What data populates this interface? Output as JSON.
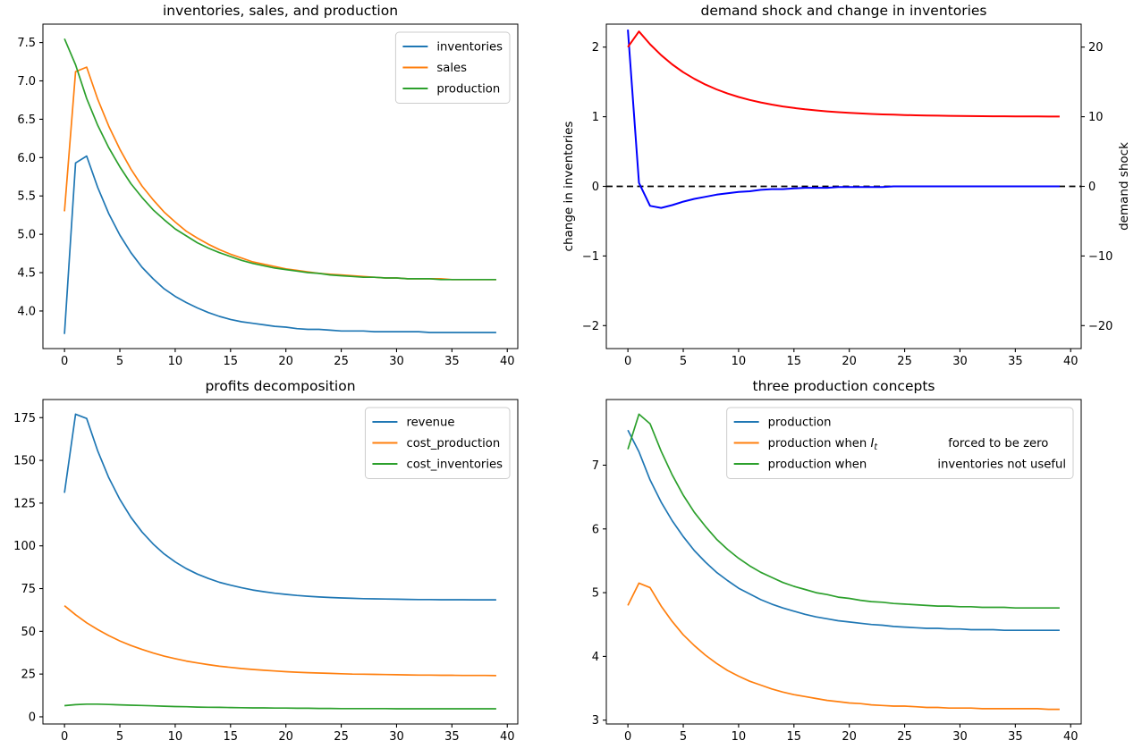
{
  "figure": {
    "background": "#ffffff",
    "text_color": "#000000",
    "spine_color": "#000000"
  },
  "chart_data": [
    {
      "id": "inventories-sales-production",
      "type": "line",
      "title": "inventories, sales, and production",
      "x": [
        0,
        1,
        2,
        3,
        4,
        5,
        6,
        7,
        8,
        9,
        10,
        11,
        12,
        13,
        14,
        15,
        16,
        17,
        18,
        19,
        20,
        21,
        22,
        23,
        24,
        25,
        26,
        27,
        28,
        29,
        30,
        31,
        32,
        33,
        34,
        35,
        36,
        37,
        38,
        39
      ],
      "xlim": [
        -1.95,
        40.95
      ],
      "ylim": [
        3.51,
        7.74
      ],
      "xticks": {
        "values": [
          0,
          5,
          10,
          15,
          20,
          25,
          30,
          35,
          40
        ],
        "labels": [
          "0",
          "5",
          "10",
          "15",
          "20",
          "25",
          "30",
          "35",
          "40"
        ]
      },
      "yticks": {
        "values": [
          4.0,
          4.5,
          5.0,
          5.5,
          6.0,
          6.5,
          7.0,
          7.5
        ],
        "labels": [
          "4.0",
          "4.5",
          "5.0",
          "5.5",
          "6.0",
          "6.5",
          "7.0",
          "7.5"
        ]
      },
      "legend": {
        "visible": true,
        "location": "upper right"
      },
      "series": [
        {
          "name": "inventories",
          "label": "inventories",
          "color": "#1f77b4",
          "width": 1.7,
          "values": [
            3.7,
            5.93,
            6.02,
            5.61,
            5.27,
            4.99,
            4.76,
            4.57,
            4.42,
            4.29,
            4.19,
            4.11,
            4.04,
            3.98,
            3.93,
            3.89,
            3.86,
            3.84,
            3.82,
            3.8,
            3.79,
            3.77,
            3.76,
            3.76,
            3.75,
            3.74,
            3.74,
            3.74,
            3.73,
            3.73,
            3.73,
            3.73,
            3.73,
            3.72,
            3.72,
            3.72,
            3.72,
            3.72,
            3.72,
            3.72
          ]
        },
        {
          "name": "sales",
          "label": "sales",
          "color": "#ff7f0e",
          "width": 1.7,
          "values": [
            5.3,
            7.12,
            7.18,
            6.76,
            6.41,
            6.11,
            5.85,
            5.63,
            5.45,
            5.29,
            5.16,
            5.04,
            4.95,
            4.87,
            4.8,
            4.74,
            4.69,
            4.64,
            4.61,
            4.58,
            4.55,
            4.53,
            4.51,
            4.49,
            4.48,
            4.47,
            4.46,
            4.45,
            4.44,
            4.43,
            4.43,
            4.42,
            4.42,
            4.42,
            4.42,
            4.41,
            4.41,
            4.41,
            4.41,
            4.41
          ]
        },
        {
          "name": "production",
          "label": "production",
          "color": "#2ca02c",
          "width": 1.7,
          "values": [
            7.55,
            7.21,
            6.77,
            6.42,
            6.13,
            5.88,
            5.66,
            5.48,
            5.32,
            5.19,
            5.07,
            4.98,
            4.89,
            4.82,
            4.76,
            4.71,
            4.66,
            4.62,
            4.59,
            4.56,
            4.54,
            4.52,
            4.5,
            4.49,
            4.47,
            4.46,
            4.45,
            4.44,
            4.44,
            4.43,
            4.43,
            4.42,
            4.42,
            4.42,
            4.41,
            4.41,
            4.41,
            4.41,
            4.41,
            4.41
          ]
        }
      ]
    },
    {
      "id": "demand-shock-change-in-inventories",
      "type": "line",
      "title": "demand shock and change in inventories",
      "x": [
        0,
        1,
        2,
        3,
        4,
        5,
        6,
        7,
        8,
        9,
        10,
        11,
        12,
        13,
        14,
        15,
        16,
        17,
        18,
        19,
        20,
        21,
        22,
        23,
        24,
        25,
        26,
        27,
        28,
        29,
        30,
        31,
        32,
        33,
        34,
        35,
        36,
        37,
        38,
        39
      ],
      "xlim": [
        -1.95,
        40.95
      ],
      "xticks": {
        "values": [
          0,
          5,
          10,
          15,
          20,
          25,
          30,
          35,
          40
        ],
        "labels": [
          "0",
          "5",
          "10",
          "15",
          "20",
          "25",
          "30",
          "35",
          "40"
        ]
      },
      "left_axis": {
        "label": "change in inventories",
        "label_color": "#0000ff",
        "lim": [
          -2.33,
          2.33
        ],
        "ticks": {
          "values": [
            -2,
            -1,
            0,
            1,
            2
          ],
          "labels": [
            "−2",
            "−1",
            "0",
            "1",
            "2"
          ]
        }
      },
      "right_axis": {
        "label": "demand shock",
        "label_color": "#ff0000",
        "lim": [
          -23.3,
          23.3
        ],
        "ticks": {
          "values": [
            -20,
            -10,
            0,
            10,
            20
          ],
          "labels": [
            "−20",
            "−10",
            "0",
            "10",
            "20"
          ]
        }
      },
      "legend": {
        "visible": false
      },
      "series": [
        {
          "name": "zero-line",
          "label": "",
          "in_legend": false,
          "axis": "left",
          "color": "#000000",
          "width": 1.8,
          "dash": "7 4.5",
          "full_width": true,
          "const": 0
        },
        {
          "name": "change-in-inventories",
          "label": "change in inventories",
          "axis": "left",
          "in_legend": false,
          "color": "#0000ff",
          "width": 2,
          "values": [
            2.25,
            0.05,
            -0.28,
            -0.31,
            -0.27,
            -0.22,
            -0.18,
            -0.15,
            -0.12,
            -0.1,
            -0.08,
            -0.07,
            -0.05,
            -0.04,
            -0.04,
            -0.03,
            -0.02,
            -0.02,
            -0.02,
            -0.01,
            -0.01,
            -0.01,
            -0.01,
            -0.01,
            0.0,
            0.0,
            0.0,
            0.0,
            0.0,
            0.0,
            0.0,
            0.0,
            0.0,
            0.0,
            0.0,
            0.0,
            0.0,
            0.0,
            0.0,
            0.0
          ]
        },
        {
          "name": "demand-shock",
          "label": "demand shock",
          "axis": "right",
          "in_legend": false,
          "color": "#ff0000",
          "width": 2,
          "values": [
            20.0,
            22.25,
            20.41,
            18.85,
            17.52,
            16.39,
            15.44,
            14.62,
            13.93,
            13.34,
            12.84,
            12.41,
            12.05,
            11.74,
            11.48,
            11.26,
            11.07,
            10.91,
            10.77,
            10.66,
            10.56,
            10.47,
            10.4,
            10.34,
            10.29,
            10.25,
            10.21,
            10.18,
            10.15,
            10.13,
            10.11,
            10.09,
            10.08,
            10.07,
            10.06,
            10.05,
            10.04,
            10.04,
            10.03,
            10.03
          ]
        }
      ]
    },
    {
      "id": "profits-decomposition",
      "type": "line",
      "title": "profits decomposition",
      "x": [
        0,
        1,
        2,
        3,
        4,
        5,
        6,
        7,
        8,
        9,
        10,
        11,
        12,
        13,
        14,
        15,
        16,
        17,
        18,
        19,
        20,
        21,
        22,
        23,
        24,
        25,
        26,
        27,
        28,
        29,
        30,
        31,
        32,
        33,
        34,
        35,
        36,
        37,
        38,
        39
      ],
      "xlim": [
        -1.95,
        40.95
      ],
      "ylim": [
        -4.2,
        185.6
      ],
      "xticks": {
        "values": [
          0,
          5,
          10,
          15,
          20,
          25,
          30,
          35,
          40
        ],
        "labels": [
          "0",
          "5",
          "10",
          "15",
          "20",
          "25",
          "30",
          "35",
          "40"
        ]
      },
      "yticks": {
        "values": [
          0,
          25,
          50,
          75,
          100,
          125,
          150,
          175
        ],
        "labels": [
          "0",
          "25",
          "50",
          "75",
          "100",
          "125",
          "150",
          "175"
        ]
      },
      "legend": {
        "visible": true,
        "location": "upper right"
      },
      "series": [
        {
          "name": "revenue",
          "label": "revenue",
          "color": "#1f77b4",
          "width": 1.7,
          "values": [
            131.0,
            177.0,
            174.5,
            155.5,
            139.9,
            127.2,
            116.7,
            108.1,
            101.1,
            95.3,
            90.6,
            86.7,
            83.5,
            80.9,
            78.7,
            77.0,
            75.5,
            74.2,
            73.2,
            72.3,
            71.6,
            71.0,
            70.5,
            70.1,
            69.8,
            69.5,
            69.3,
            69.1,
            69.0,
            68.9,
            68.8,
            68.7,
            68.6,
            68.6,
            68.5,
            68.5,
            68.5,
            68.4,
            68.4,
            68.4
          ]
        },
        {
          "name": "cost_production",
          "label": "cost_production",
          "color": "#ff7f0e",
          "width": 1.7,
          "values": [
            65.0,
            59.7,
            55.0,
            51.0,
            47.5,
            44.4,
            41.7,
            39.4,
            37.3,
            35.5,
            34.0,
            32.6,
            31.5,
            30.5,
            29.6,
            28.9,
            28.2,
            27.7,
            27.2,
            26.8,
            26.4,
            26.1,
            25.8,
            25.6,
            25.4,
            25.2,
            25.0,
            24.9,
            24.8,
            24.7,
            24.6,
            24.5,
            24.4,
            24.4,
            24.3,
            24.3,
            24.2,
            24.2,
            24.2,
            24.1
          ]
        },
        {
          "name": "cost_inventories",
          "label": "cost_inventories",
          "color": "#2ca02c",
          "width": 1.7,
          "values": [
            6.5,
            7.1,
            7.4,
            7.4,
            7.2,
            7.0,
            6.8,
            6.6,
            6.4,
            6.2,
            6.0,
            5.9,
            5.7,
            5.6,
            5.5,
            5.4,
            5.3,
            5.2,
            5.2,
            5.1,
            5.1,
            5.0,
            5.0,
            4.9,
            4.9,
            4.8,
            4.8,
            4.8,
            4.8,
            4.8,
            4.7,
            4.7,
            4.7,
            4.7,
            4.7,
            4.7,
            4.7,
            4.7,
            4.7,
            4.7
          ]
        }
      ]
    },
    {
      "id": "three-production-concepts",
      "type": "line",
      "title": "three production concepts",
      "x": [
        0,
        1,
        2,
        3,
        4,
        5,
        6,
        7,
        8,
        9,
        10,
        11,
        12,
        13,
        14,
        15,
        16,
        17,
        18,
        19,
        20,
        21,
        22,
        23,
        24,
        25,
        26,
        27,
        28,
        29,
        30,
        31,
        32,
        33,
        34,
        35,
        36,
        37,
        38,
        39
      ],
      "xlim": [
        -1.95,
        40.95
      ],
      "ylim": [
        2.94,
        8.03
      ],
      "xticks": {
        "values": [
          0,
          5,
          10,
          15,
          20,
          25,
          30,
          35,
          40
        ],
        "labels": [
          "0",
          "5",
          "10",
          "15",
          "20",
          "25",
          "30",
          "35",
          "40"
        ]
      },
      "yticks": {
        "values": [
          3,
          4,
          5,
          6,
          7
        ],
        "labels": [
          "3",
          "4",
          "5",
          "6",
          "7"
        ]
      },
      "legend": {
        "visible": true,
        "location": "upper right"
      },
      "series": [
        {
          "name": "production",
          "label": "production",
          "color": "#1f77b4",
          "width": 1.7,
          "values": [
            7.55,
            7.21,
            6.77,
            6.42,
            6.13,
            5.88,
            5.66,
            5.48,
            5.32,
            5.19,
            5.07,
            4.98,
            4.89,
            4.82,
            4.76,
            4.71,
            4.66,
            4.62,
            4.59,
            4.56,
            4.54,
            4.52,
            4.5,
            4.49,
            4.47,
            4.46,
            4.45,
            4.44,
            4.44,
            4.43,
            4.43,
            4.42,
            4.42,
            4.42,
            4.41,
            4.41,
            4.41,
            4.41,
            4.41,
            4.41
          ]
        },
        {
          "name": "production-inventories-forced-zero",
          "label": "production when  $I_t$      forced to be zero",
          "color": "#ff7f0e",
          "width": 1.7,
          "values": [
            4.8,
            5.15,
            5.08,
            4.79,
            4.55,
            4.34,
            4.17,
            4.02,
            3.89,
            3.78,
            3.69,
            3.61,
            3.55,
            3.49,
            3.44,
            3.4,
            3.37,
            3.34,
            3.31,
            3.29,
            3.27,
            3.26,
            3.24,
            3.23,
            3.22,
            3.22,
            3.21,
            3.2,
            3.2,
            3.19,
            3.19,
            3.19,
            3.18,
            3.18,
            3.18,
            3.18,
            3.18,
            3.18,
            3.17,
            3.17
          ]
        },
        {
          "name": "production-inventories-not-useful",
          "label": "production when      inventories not useful",
          "color": "#2ca02c",
          "width": 1.7,
          "values": [
            7.25,
            7.8,
            7.65,
            7.22,
            6.85,
            6.53,
            6.26,
            6.04,
            5.84,
            5.68,
            5.54,
            5.42,
            5.32,
            5.24,
            5.16,
            5.1,
            5.05,
            5.0,
            4.97,
            4.93,
            4.91,
            4.88,
            4.86,
            4.85,
            4.83,
            4.82,
            4.81,
            4.8,
            4.79,
            4.79,
            4.78,
            4.78,
            4.77,
            4.77,
            4.77,
            4.76,
            4.76,
            4.76,
            4.76,
            4.76
          ]
        }
      ]
    }
  ]
}
